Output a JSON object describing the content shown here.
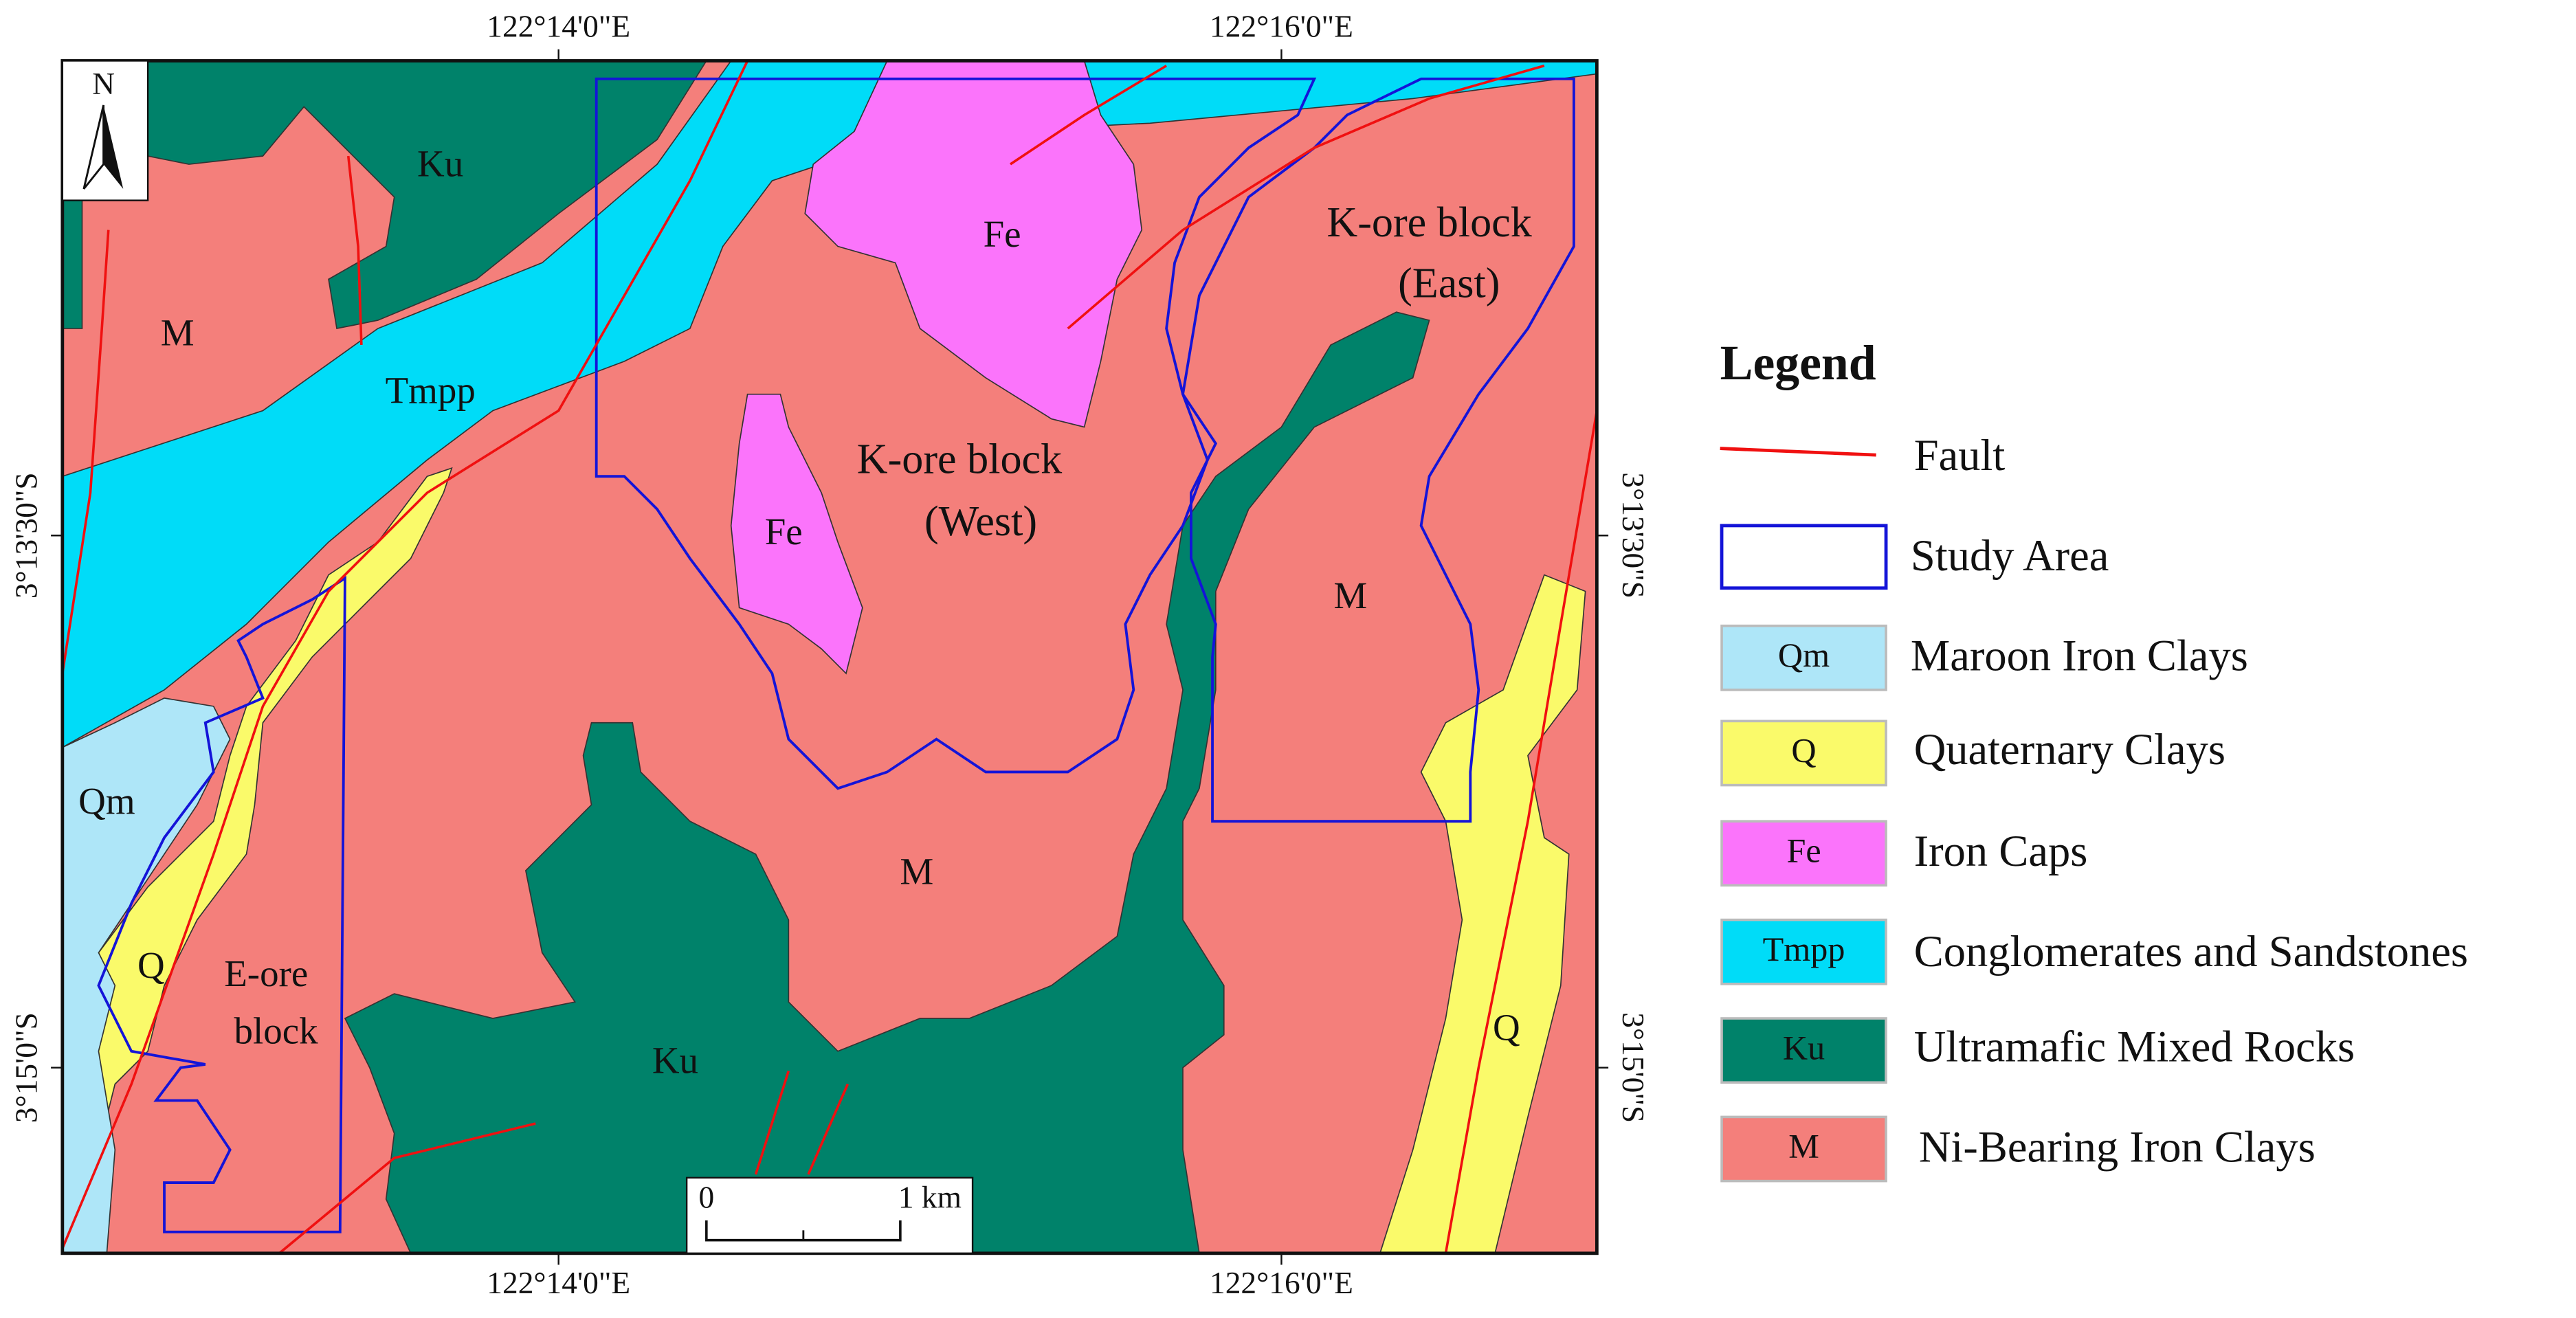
{
  "map": {
    "top_axis": [
      "122°14'0\"E",
      "122°16'0\"E"
    ],
    "bottom_axis": [
      "122°14'0\"E",
      "122°16'0\"E"
    ],
    "left_axis": [
      "3°13'30\"S",
      "3°15'0\"S"
    ],
    "right_axis": [
      "3°13'30\"S",
      "3°15'0\"S"
    ],
    "north": "N",
    "scale": [
      "0",
      "1 km"
    ],
    "labels": [
      "Ku",
      "M",
      "Tmpp",
      "Fe",
      "K-ore block",
      "(East)",
      "K-ore block",
      "(West)",
      "Fe",
      "M",
      "Qm",
      "M",
      "Q",
      "E-ore",
      "block",
      "Ku",
      "Q"
    ]
  },
  "legend": {
    "title": "Legend",
    "items": [
      {
        "label": "Fault"
      },
      {
        "label": "Study Area"
      },
      {
        "code": "Qm",
        "label": "Maroon Iron Clays"
      },
      {
        "code": "Q",
        "label": "Quaternary Clays"
      },
      {
        "code": "Fe",
        "label": "Iron Caps"
      },
      {
        "code": "Tmpp",
        "label": "Conglomerates and Sandstones"
      },
      {
        "code": "Ku",
        "label": "Ultramafic Mixed Rocks"
      },
      {
        "code": "M",
        "label": "Ni-Bearing Iron Clays"
      }
    ]
  }
}
